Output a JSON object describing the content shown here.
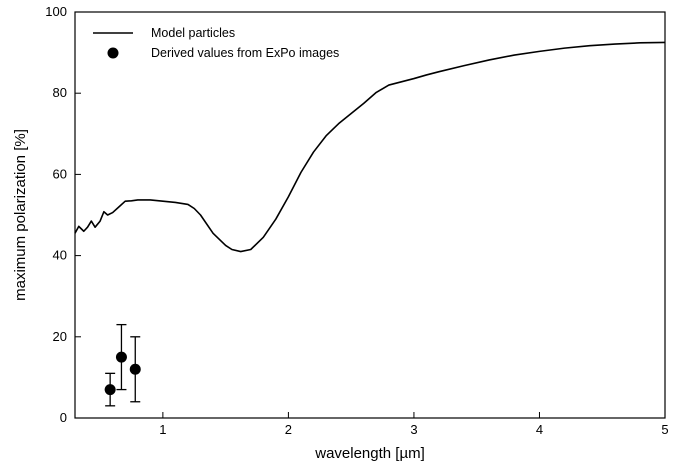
{
  "chart_data": {
    "type": "line",
    "title": "",
    "xlabel": "wavelength [µm]",
    "ylabel": "maximum polarization [%]",
    "xlim": [
      0.3,
      5
    ],
    "ylim": [
      0,
      100
    ],
    "x_ticks": [
      1,
      2,
      3,
      4,
      5
    ],
    "y_ticks": [
      0,
      20,
      40,
      60,
      80,
      100
    ],
    "grid": false,
    "legend_placement": "top-left",
    "series": [
      {
        "name": "Model particles",
        "kind": "line",
        "color": "#000000",
        "points": [
          [
            0.3,
            45.5
          ],
          [
            0.33,
            47.2
          ],
          [
            0.37,
            46.0
          ],
          [
            0.4,
            47.0
          ],
          [
            0.43,
            48.5
          ],
          [
            0.46,
            47.0
          ],
          [
            0.5,
            48.5
          ],
          [
            0.53,
            50.8
          ],
          [
            0.56,
            50.0
          ],
          [
            0.6,
            50.6
          ],
          [
            0.65,
            52.0
          ],
          [
            0.7,
            53.4
          ],
          [
            0.75,
            53.5
          ],
          [
            0.8,
            53.7
          ],
          [
            0.9,
            53.7
          ],
          [
            1.0,
            53.4
          ],
          [
            1.1,
            53.1
          ],
          [
            1.2,
            52.6
          ],
          [
            1.25,
            51.6
          ],
          [
            1.3,
            50.0
          ],
          [
            1.4,
            45.5
          ],
          [
            1.5,
            42.5
          ],
          [
            1.55,
            41.5
          ],
          [
            1.62,
            41.0
          ],
          [
            1.7,
            41.5
          ],
          [
            1.8,
            44.5
          ],
          [
            1.9,
            49.0
          ],
          [
            2.0,
            54.5
          ],
          [
            2.1,
            60.5
          ],
          [
            2.2,
            65.5
          ],
          [
            2.3,
            69.5
          ],
          [
            2.4,
            72.5
          ],
          [
            2.5,
            75.0
          ],
          [
            2.6,
            77.5
          ],
          [
            2.7,
            80.2
          ],
          [
            2.8,
            82.0
          ],
          [
            2.9,
            82.8
          ],
          [
            3.0,
            83.6
          ],
          [
            3.1,
            84.5
          ],
          [
            3.2,
            85.3
          ],
          [
            3.4,
            86.8
          ],
          [
            3.6,
            88.2
          ],
          [
            3.8,
            89.4
          ],
          [
            4.0,
            90.3
          ],
          [
            4.2,
            91.1
          ],
          [
            4.4,
            91.7
          ],
          [
            4.6,
            92.1
          ],
          [
            4.8,
            92.4
          ],
          [
            5.0,
            92.5
          ]
        ]
      },
      {
        "name": "Derived values from ExPo images",
        "kind": "scatter",
        "color": "#000000",
        "points": [
          {
            "x": 0.58,
            "y": 7,
            "err_low": 3,
            "err_high": 11
          },
          {
            "x": 0.67,
            "y": 15,
            "err_low": 7,
            "err_high": 23
          },
          {
            "x": 0.78,
            "y": 12,
            "err_low": 4,
            "err_high": 20
          }
        ]
      }
    ]
  }
}
